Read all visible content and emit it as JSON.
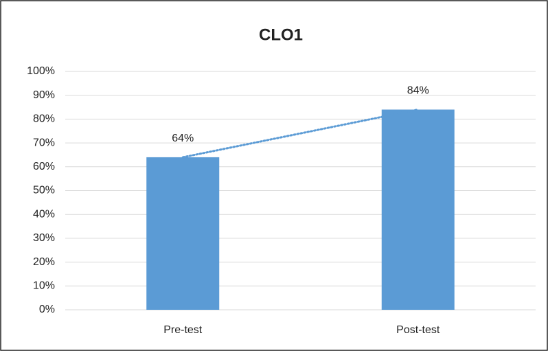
{
  "chart_data": {
    "type": "bar",
    "title": "CLO1",
    "categories": [
      "Pre-test",
      "Post-test"
    ],
    "values": [
      64,
      84
    ],
    "value_labels": [
      "64%",
      "84%"
    ],
    "color": "#5b9bd5",
    "ylim": [
      0,
      100
    ],
    "yticks": [
      {
        "value": 0,
        "label": "0%"
      },
      {
        "value": 10,
        "label": "10%"
      },
      {
        "value": 20,
        "label": "20%"
      },
      {
        "value": 30,
        "label": "30%"
      },
      {
        "value": 40,
        "label": "40%"
      },
      {
        "value": 50,
        "label": "50%"
      },
      {
        "value": 60,
        "label": "60%"
      },
      {
        "value": 70,
        "label": "70%"
      },
      {
        "value": 80,
        "label": "80%"
      },
      {
        "value": 90,
        "label": "90%"
      },
      {
        "value": 100,
        "label": "100%"
      }
    ],
    "grid": true
  }
}
